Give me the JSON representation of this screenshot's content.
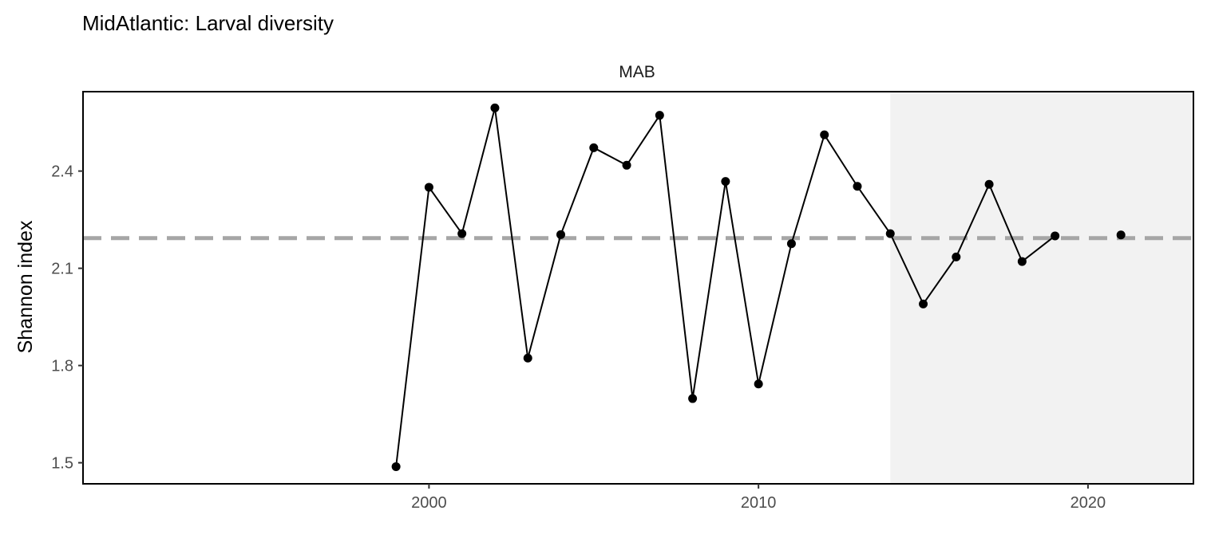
{
  "title": "MidAtlantic: Larval diversity",
  "chart_data": {
    "type": "line",
    "title": "MidAtlantic: Larval diversity",
    "facet_label": "MAB",
    "xlabel": "",
    "ylabel": "Shannon index",
    "xlim": [
      1989.5,
      2023.2
    ],
    "ylim": [
      1.435,
      2.645
    ],
    "x_ticks": [
      2000,
      2010,
      2020
    ],
    "y_ticks": [
      1.5,
      1.8,
      2.1,
      2.4
    ],
    "y_tick_labels": [
      "1.5",
      "1.8",
      "2.1",
      "2.4"
    ],
    "grid": false,
    "series": [
      {
        "x": [
          1999,
          2000,
          2001,
          2002,
          2003,
          2004,
          2005,
          2006,
          2007,
          2008,
          2009,
          2010,
          2011,
          2012,
          2013,
          2014,
          2015,
          2016,
          2017,
          2018,
          2019
        ],
        "y": [
          1.488,
          2.35,
          2.207,
          2.595,
          1.823,
          2.204,
          2.472,
          2.418,
          2.572,
          1.698,
          2.368,
          1.743,
          2.176,
          2.512,
          2.353,
          2.207,
          1.99,
          2.135,
          2.359,
          2.121,
          2.2
        ]
      },
      {
        "x": [
          2021
        ],
        "y": [
          2.203
        ]
      }
    ],
    "reference_line": {
      "y": 2.193,
      "style": "dashed",
      "color": "#a6a6a6"
    },
    "shaded_region": {
      "x_start": 2014,
      "x_end": 2023.2,
      "color": "#f2f2f2"
    }
  }
}
